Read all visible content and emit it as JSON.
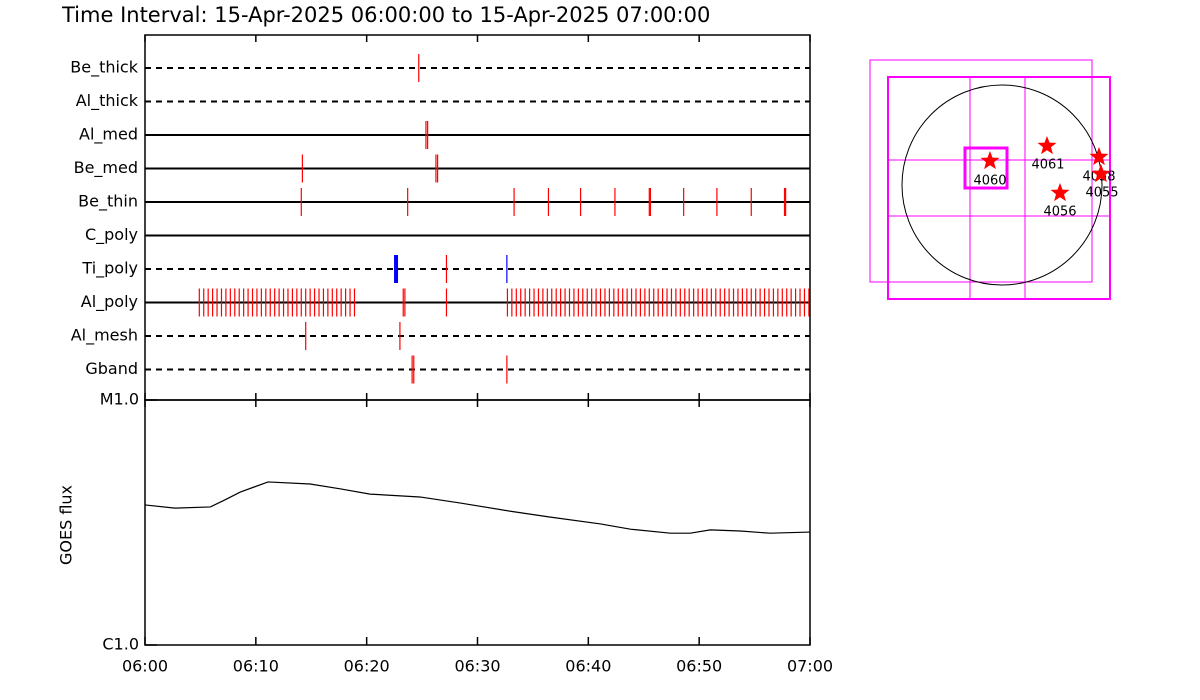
{
  "chart_data": [
    {
      "type": "timeline",
      "title": "Time Interval: 15-Apr-2025 06:00:00 to 15-Apr-2025 07:00:00",
      "xlim": [
        0,
        60
      ],
      "xticks": [
        {
          "value": 0,
          "label": "06:00"
        },
        {
          "value": 10,
          "label": "06:10"
        },
        {
          "value": 20,
          "label": "06:20"
        },
        {
          "value": 30,
          "label": "06:30"
        },
        {
          "value": 40,
          "label": "06:40"
        },
        {
          "value": 50,
          "label": "06:50"
        },
        {
          "value": 60,
          "label": "07:00"
        }
      ],
      "rows": [
        {
          "name": "Be_thick",
          "dashed": true,
          "events": [
            {
              "color": "#ff0000",
              "times": [
                24.7
              ]
            }
          ]
        },
        {
          "name": "Al_thick",
          "dashed": true,
          "events": []
        },
        {
          "name": "Al_med",
          "dashed": false,
          "events": [
            {
              "color": "#ff0000",
              "times": [
                25.35,
                25.5
              ]
            }
          ]
        },
        {
          "name": "Be_med",
          "dashed": false,
          "events": [
            {
              "color": "#ff0000",
              "times": [
                14.2,
                26.25,
                26.4
              ]
            }
          ]
        },
        {
          "name": "Be_thin",
          "dashed": false,
          "events": [
            {
              "color": "#ff0000",
              "times": [
                14.1,
                23.7,
                33.3,
                36.4,
                39.3,
                42.4,
                45.5,
                45.6,
                48.6,
                51.6,
                54.7,
                57.7,
                57.8
              ]
            }
          ]
        },
        {
          "name": "C_poly",
          "dashed": false,
          "events": []
        },
        {
          "name": "Ti_poly",
          "dashed": true,
          "events": [
            {
              "color": "#0000ff",
              "thick": true,
              "times": [
                22.65
              ]
            },
            {
              "color": "#ff0000",
              "times": [
                27.2
              ]
            },
            {
              "color": "#0000ff",
              "times": [
                32.65
              ]
            }
          ]
        },
        {
          "name": "Al_poly",
          "dashed": false,
          "events": [
            {
              "color": "#ff0000",
              "times": [
                4.9,
                5.3,
                5.7,
                6.1,
                6.5,
                6.9,
                7.3,
                7.7,
                8.1,
                8.5,
                8.9,
                9.3,
                9.7,
                10.1,
                10.5,
                10.9,
                11.3,
                11.7,
                12.1,
                12.5,
                12.9,
                13.3,
                13.7,
                14.1,
                14.5,
                14.9,
                15.3,
                15.7,
                16.1,
                16.5,
                16.9,
                17.3,
                17.7,
                18.1,
                18.5,
                18.9,
                23.3,
                23.45,
                27.2,
                32.7,
                33.1,
                33.5,
                33.9,
                34.3,
                34.7,
                35.1,
                35.5,
                35.9,
                36.3,
                36.7,
                37.1,
                37.5,
                37.9,
                38.3,
                38.7,
                39.1,
                39.5,
                39.9,
                40.3,
                40.7,
                41.1,
                41.5,
                41.9,
                42.3,
                42.7,
                43.1,
                43.5,
                43.9,
                44.3,
                44.7,
                45.1,
                45.5,
                45.9,
                46.3,
                46.7,
                47.1,
                47.5,
                47.9,
                48.3,
                48.7,
                49.1,
                49.5,
                49.9,
                50.3,
                50.7,
                51.1,
                51.5,
                51.9,
                52.3,
                52.7,
                53.1,
                53.5,
                53.9,
                54.3,
                54.7,
                55.1,
                55.5,
                55.9,
                56.3,
                56.7,
                57.1,
                57.5,
                57.9,
                58.3,
                58.7,
                59.1,
                59.5,
                59.9
              ]
            }
          ]
        },
        {
          "name": "Al_mesh",
          "dashed": true,
          "events": [
            {
              "color": "#ff0000",
              "times": [
                14.5,
                23.0
              ]
            }
          ]
        },
        {
          "name": "Gband",
          "dashed": true,
          "events": [
            {
              "color": "#ff0000",
              "times": [
                24.1,
                24.25,
                32.65
              ]
            }
          ]
        }
      ]
    },
    {
      "type": "line",
      "ylabel": "GOES flux",
      "color": "#000000",
      "log_y": true,
      "xlim": [
        0,
        60
      ],
      "ylim": [
        1e-06,
        1e-05
      ],
      "yticks": [
        {
          "value": 1e-06,
          "label": "C1.0"
        },
        {
          "value": 1e-05,
          "label": "M1.0"
        }
      ],
      "x": [
        0,
        2.7,
        5.9,
        7.2,
        8.6,
        11.1,
        14.9,
        17.6,
        20.3,
        24.8,
        28.4,
        32.9,
        36.5,
        41.1,
        43.8,
        47.4,
        49.2,
        51.0,
        53.7,
        56.4,
        60
      ],
      "values": [
        3.73e-06,
        3.62e-06,
        3.66e-06,
        3.91e-06,
        4.21e-06,
        4.63e-06,
        4.54e-06,
        4.34e-06,
        4.13e-06,
        4.02e-06,
        3.8e-06,
        3.52e-06,
        3.33e-06,
        3.12e-06,
        2.97e-06,
        2.86e-06,
        2.86e-06,
        2.95e-06,
        2.92e-06,
        2.86e-06,
        2.89e-06
      ]
    },
    {
      "type": "map",
      "color": "#ff0000",
      "frame_color": "#ff00ff",
      "regions": [
        {
          "name": "4060"
        },
        {
          "name": "4061"
        },
        {
          "name": "4058"
        },
        {
          "name": "4055"
        },
        {
          "name": "4056"
        }
      ]
    }
  ]
}
